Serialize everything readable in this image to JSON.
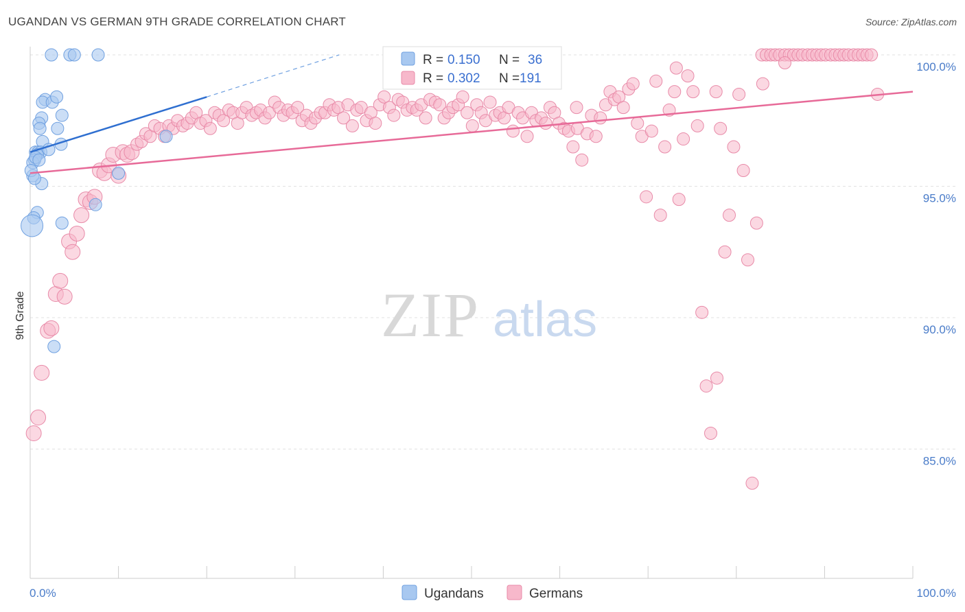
{
  "title": "UGANDAN VS GERMAN 9TH GRADE CORRELATION CHART",
  "source": "Source: ZipAtlas.com",
  "watermark": {
    "zip": "ZIP",
    "atlas": "atlas"
  },
  "legend_top": {
    "rows": [
      {
        "r_label": "R =",
        "r_value": "0.150",
        "n_label": "N =",
        "n_value": "36",
        "color": "#a8c8f0"
      },
      {
        "r_label": "R =",
        "r_value": "0.302",
        "n_label": "N =",
        "n_value": "191",
        "color": "#f7b8cb"
      }
    ]
  },
  "legend_bottom": [
    {
      "label": "Ugandans",
      "color": "#a8c8f0"
    },
    {
      "label": "Germans",
      "color": "#f7b8cb"
    }
  ],
  "chart_data": {
    "type": "scatter",
    "title": "UGANDAN VS GERMAN 9TH GRADE CORRELATION CHART",
    "xlabel": "",
    "ylabel": "9th Grade",
    "xlim": [
      0,
      100
    ],
    "ylim": [
      80.5,
      100.7
    ],
    "x_tick_labels": [
      {
        "value": 0,
        "label": "0.0%"
      },
      {
        "value": 100,
        "label": "100.0%"
      }
    ],
    "y_tick_labels": [
      {
        "value": 100,
        "label": "100.0%"
      },
      {
        "value": 95,
        "label": "95.0%"
      },
      {
        "value": 90,
        "label": "90.0%"
      },
      {
        "value": 85,
        "label": "85.0%"
      }
    ],
    "grid": "horizontal dashed",
    "series": [
      {
        "name": "Ugandans",
        "color": "#4a86d8",
        "fill": "#a8c8f0",
        "trend": {
          "x0": 0,
          "y0": 96.3,
          "x1": 20,
          "y1": 98.4,
          "dash_to_x": 35,
          "dash_to_y": 100.0
        },
        "points": [
          [
            2.4,
            100
          ],
          [
            4.5,
            100
          ],
          [
            5.0,
            100
          ],
          [
            7.7,
            100
          ],
          [
            1.7,
            98.3
          ],
          [
            1.4,
            98.2
          ],
          [
            2.5,
            98.2
          ],
          [
            3.0,
            98.4
          ],
          [
            3.6,
            97.7
          ],
          [
            1.3,
            97.6
          ],
          [
            1.0,
            97.4
          ],
          [
            1.1,
            97.2
          ],
          [
            3.1,
            97.2
          ],
          [
            1.4,
            96.7
          ],
          [
            3.5,
            96.6
          ],
          [
            0.6,
            96.3
          ],
          [
            0.9,
            96.3
          ],
          [
            1.2,
            96.3
          ],
          [
            2.1,
            96.4
          ],
          [
            0.8,
            96.2
          ],
          [
            0.5,
            96.0
          ],
          [
            0.3,
            95.9
          ],
          [
            0.6,
            96.1
          ],
          [
            0.3,
            95.4
          ],
          [
            1.3,
            95.1
          ],
          [
            10.0,
            95.5
          ],
          [
            15.4,
            96.9
          ],
          [
            7.4,
            94.3
          ],
          [
            0.8,
            94.0
          ],
          [
            0.4,
            93.8
          ],
          [
            0.2,
            93.5
          ],
          [
            3.6,
            93.6
          ],
          [
            2.7,
            88.9
          ],
          [
            0.1,
            95.6
          ],
          [
            1.0,
            96.0
          ],
          [
            0.5,
            95.3
          ]
        ],
        "sizes": [
          9,
          9,
          9,
          9,
          9,
          9,
          9,
          9,
          9,
          9,
          9,
          9,
          9,
          9,
          9,
          9,
          9,
          9,
          9,
          9,
          9,
          9,
          9,
          9,
          9,
          9,
          9,
          9,
          9,
          9,
          16,
          9,
          9,
          9,
          9,
          9
        ]
      },
      {
        "name": "Germans",
        "color": "#e76a98",
        "fill": "#f7b8cb",
        "trend": {
          "x0": 0,
          "y0": 95.5,
          "x1": 100,
          "y1": 98.6
        },
        "points": [
          [
            0.4,
            85.6
          ],
          [
            0.9,
            86.2
          ],
          [
            1.3,
            87.9
          ],
          [
            2.0,
            89.5
          ],
          [
            2.4,
            89.6
          ],
          [
            2.9,
            90.9
          ],
          [
            3.4,
            91.4
          ],
          [
            3.9,
            90.8
          ],
          [
            4.4,
            92.9
          ],
          [
            4.8,
            92.5
          ],
          [
            5.3,
            93.2
          ],
          [
            5.8,
            93.9
          ],
          [
            6.3,
            94.5
          ],
          [
            6.8,
            94.4
          ],
          [
            7.3,
            94.6
          ],
          [
            7.9,
            95.6
          ],
          [
            8.4,
            95.5
          ],
          [
            8.9,
            95.8
          ],
          [
            9.4,
            96.2
          ],
          [
            10.0,
            95.4
          ],
          [
            10.5,
            96.3
          ],
          [
            11.0,
            96.2
          ],
          [
            11.5,
            96.3
          ],
          [
            12.1,
            96.6
          ],
          [
            12.6,
            96.7
          ],
          [
            13.1,
            97.0
          ],
          [
            13.6,
            96.9
          ],
          [
            14.1,
            97.3
          ],
          [
            14.7,
            97.2
          ],
          [
            15.2,
            96.9
          ],
          [
            15.7,
            97.3
          ],
          [
            16.2,
            97.2
          ],
          [
            16.7,
            97.5
          ],
          [
            17.3,
            97.3
          ],
          [
            17.8,
            97.4
          ],
          [
            18.3,
            97.6
          ],
          [
            18.8,
            97.8
          ],
          [
            19.3,
            97.4
          ],
          [
            19.9,
            97.5
          ],
          [
            20.4,
            97.2
          ],
          [
            20.9,
            97.8
          ],
          [
            21.4,
            97.7
          ],
          [
            21.9,
            97.5
          ],
          [
            22.5,
            97.9
          ],
          [
            23.0,
            97.8
          ],
          [
            23.5,
            97.4
          ],
          [
            24.0,
            97.8
          ],
          [
            24.5,
            98.0
          ],
          [
            25.1,
            97.7
          ],
          [
            25.6,
            97.8
          ],
          [
            26.1,
            97.9
          ],
          [
            26.6,
            97.6
          ],
          [
            27.1,
            97.8
          ],
          [
            27.7,
            98.2
          ],
          [
            28.2,
            98.0
          ],
          [
            28.7,
            97.7
          ],
          [
            29.2,
            97.9
          ],
          [
            29.7,
            97.8
          ],
          [
            30.3,
            98.0
          ],
          [
            30.8,
            97.5
          ],
          [
            31.3,
            97.7
          ],
          [
            31.8,
            97.4
          ],
          [
            32.3,
            97.6
          ],
          [
            32.9,
            97.8
          ],
          [
            33.4,
            97.8
          ],
          [
            33.9,
            98.1
          ],
          [
            34.4,
            97.9
          ],
          [
            34.9,
            98.0
          ],
          [
            35.5,
            97.6
          ],
          [
            36.0,
            98.1
          ],
          [
            36.5,
            97.3
          ],
          [
            37.0,
            97.9
          ],
          [
            37.5,
            98.0
          ],
          [
            38.1,
            97.5
          ],
          [
            38.6,
            97.8
          ],
          [
            39.1,
            97.4
          ],
          [
            39.6,
            98.1
          ],
          [
            40.1,
            98.4
          ],
          [
            40.7,
            98.0
          ],
          [
            41.2,
            97.7
          ],
          [
            41.7,
            98.3
          ],
          [
            42.2,
            98.2
          ],
          [
            42.7,
            97.9
          ],
          [
            43.3,
            98.0
          ],
          [
            43.8,
            97.9
          ],
          [
            44.3,
            98.1
          ],
          [
            44.8,
            97.6
          ],
          [
            45.3,
            98.3
          ],
          [
            45.9,
            98.2
          ],
          [
            46.4,
            98.1
          ],
          [
            46.9,
            97.6
          ],
          [
            47.4,
            97.8
          ],
          [
            47.9,
            98.0
          ],
          [
            48.5,
            98.1
          ],
          [
            49.0,
            98.4
          ],
          [
            49.5,
            97.8
          ],
          [
            50.1,
            97.3
          ],
          [
            50.6,
            98.1
          ],
          [
            51.1,
            97.8
          ],
          [
            51.6,
            97.5
          ],
          [
            52.1,
            98.2
          ],
          [
            52.7,
            97.7
          ],
          [
            53.2,
            97.8
          ],
          [
            53.7,
            97.6
          ],
          [
            54.2,
            98.0
          ],
          [
            54.7,
            97.1
          ],
          [
            55.3,
            97.8
          ],
          [
            55.8,
            97.6
          ],
          [
            56.3,
            96.9
          ],
          [
            56.8,
            97.8
          ],
          [
            57.3,
            97.5
          ],
          [
            57.9,
            97.6
          ],
          [
            58.4,
            97.4
          ],
          [
            58.9,
            98.0
          ],
          [
            59.4,
            97.8
          ],
          [
            59.9,
            97.4
          ],
          [
            60.5,
            97.2
          ],
          [
            61.0,
            97.1
          ],
          [
            61.5,
            96.5
          ],
          [
            62.0,
            97.2
          ],
          [
            62.5,
            96.0
          ],
          [
            63.1,
            97.0
          ],
          [
            63.6,
            97.7
          ],
          [
            64.1,
            96.9
          ],
          [
            64.6,
            97.6
          ],
          [
            65.2,
            98.1
          ],
          [
            65.7,
            98.6
          ],
          [
            66.2,
            98.3
          ],
          [
            66.7,
            98.4
          ],
          [
            67.2,
            98.0
          ],
          [
            67.8,
            98.7
          ],
          [
            68.3,
            98.9
          ],
          [
            68.8,
            97.4
          ],
          [
            69.3,
            96.9
          ],
          [
            69.8,
            94.6
          ],
          [
            70.4,
            97.1
          ],
          [
            70.9,
            99.0
          ],
          [
            71.4,
            93.9
          ],
          [
            71.9,
            96.5
          ],
          [
            72.4,
            97.9
          ],
          [
            73.0,
            98.6
          ],
          [
            73.5,
            94.5
          ],
          [
            74.0,
            96.8
          ],
          [
            74.5,
            99.2
          ],
          [
            75.1,
            98.6
          ],
          [
            75.6,
            97.3
          ],
          [
            76.1,
            90.2
          ],
          [
            76.6,
            87.4
          ],
          [
            77.1,
            85.6
          ],
          [
            77.7,
            98.6
          ],
          [
            78.2,
            97.2
          ],
          [
            78.7,
            92.5
          ],
          [
            79.2,
            93.9
          ],
          [
            79.7,
            96.5
          ],
          [
            80.3,
            98.5
          ],
          [
            80.8,
            95.6
          ],
          [
            81.3,
            92.2
          ],
          [
            81.8,
            83.7
          ],
          [
            82.3,
            93.6
          ],
          [
            82.9,
            100
          ],
          [
            83.4,
            100
          ],
          [
            83.9,
            100
          ],
          [
            84.4,
            100
          ],
          [
            84.9,
            100
          ],
          [
            85.5,
            100
          ],
          [
            86.0,
            100
          ],
          [
            86.5,
            100
          ],
          [
            87.0,
            100
          ],
          [
            87.5,
            100
          ],
          [
            88.1,
            100
          ],
          [
            88.6,
            100
          ],
          [
            89.1,
            100
          ],
          [
            89.6,
            100
          ],
          [
            90.1,
            100
          ],
          [
            90.7,
            100
          ],
          [
            91.2,
            100
          ],
          [
            91.7,
            100
          ],
          [
            92.2,
            100
          ],
          [
            92.7,
            100
          ],
          [
            93.3,
            100
          ],
          [
            93.8,
            100
          ],
          [
            94.3,
            100
          ],
          [
            94.8,
            100
          ],
          [
            95.3,
            100
          ],
          [
            96.0,
            98.5
          ],
          [
            85.5,
            99.7
          ],
          [
            77.8,
            87.7
          ],
          [
            73.2,
            99.5
          ],
          [
            61.9,
            98.0
          ],
          [
            58.0,
            99.0
          ],
          [
            83.0,
            98.9
          ]
        ]
      }
    ]
  }
}
